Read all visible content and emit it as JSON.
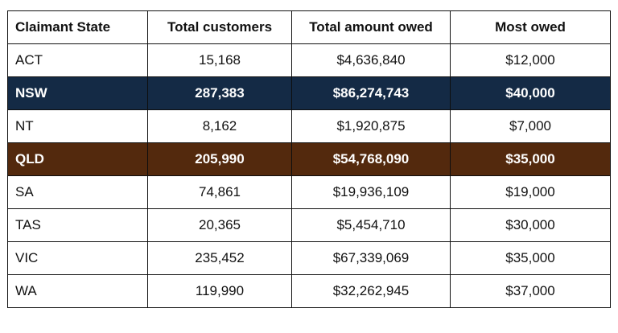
{
  "table": {
    "headers": [
      "Claimant State",
      "Total customers",
      "Total amount owed",
      "Most owed"
    ],
    "rows": [
      {
        "cells": [
          "ACT",
          "15,168",
          "$4,636,840",
          "$12,000"
        ],
        "highlight": null
      },
      {
        "cells": [
          "NSW",
          "287,383",
          "$86,274,743",
          "$40,000"
        ],
        "highlight": "#142a45"
      },
      {
        "cells": [
          "NT",
          "8,162",
          "$1,920,875",
          "$7,000"
        ],
        "highlight": null
      },
      {
        "cells": [
          "QLD",
          "205,990",
          "$54,768,090",
          "$35,000"
        ],
        "highlight": "#53290d"
      },
      {
        "cells": [
          "SA",
          "74,861",
          "$19,936,109",
          "$19,000"
        ],
        "highlight": null
      },
      {
        "cells": [
          "TAS",
          "20,365",
          "$5,454,710",
          "$30,000"
        ],
        "highlight": null
      },
      {
        "cells": [
          "VIC",
          "235,452",
          "$67,339,069",
          "$35,000"
        ],
        "highlight": null
      },
      {
        "cells": [
          "WA",
          "119,990",
          "$32,262,945",
          "$37,000"
        ],
        "highlight": null
      }
    ]
  }
}
